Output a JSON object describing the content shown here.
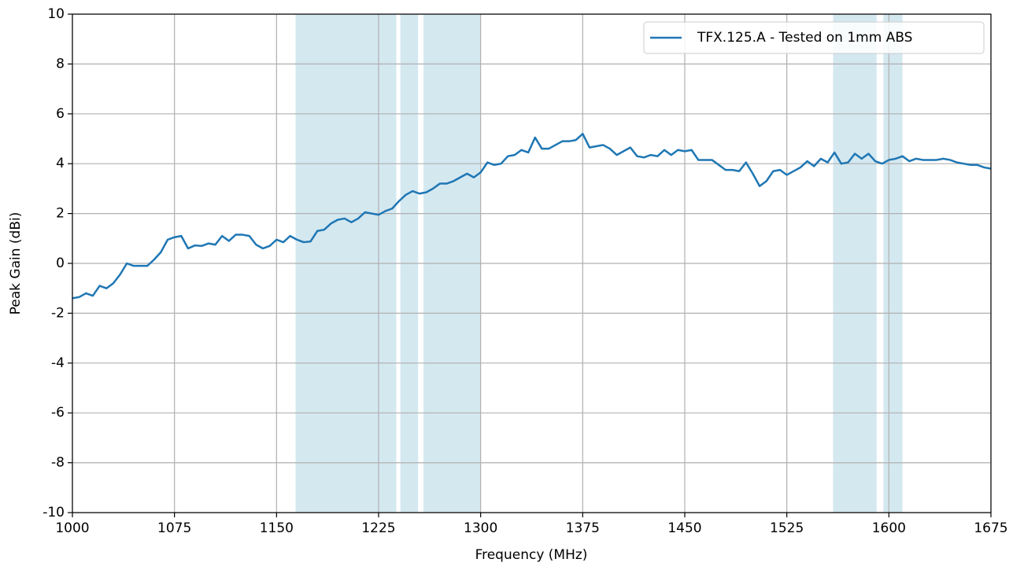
{
  "chart_data": {
    "type": "line",
    "xlabel": "Frequency (MHz)",
    "ylabel": "Peak Gain (dBi)",
    "xlim": [
      1000,
      1675
    ],
    "ylim": [
      -10,
      10
    ],
    "xticks": [
      1000,
      1075,
      1150,
      1225,
      1300,
      1375,
      1450,
      1525,
      1600,
      1675
    ],
    "yticks": [
      -10,
      -8,
      -6,
      -4,
      -2,
      0,
      2,
      4,
      6,
      8,
      10
    ],
    "grid": true,
    "legend": "upper right",
    "bands": [
      [
        1164,
        1238
      ],
      [
        1241,
        1254
      ],
      [
        1258,
        1300
      ],
      [
        1559,
        1591
      ],
      [
        1596,
        1610
      ]
    ],
    "band_color": "#d4e8f0",
    "x": [
      1000,
      1005,
      1010,
      1015,
      1020,
      1025,
      1030,
      1035,
      1040,
      1045,
      1050,
      1055,
      1060,
      1065,
      1070,
      1075,
      1080,
      1085,
      1090,
      1095,
      1100,
      1105,
      1110,
      1115,
      1120,
      1125,
      1130,
      1135,
      1140,
      1145,
      1150,
      1155,
      1160,
      1165,
      1170,
      1175,
      1180,
      1185,
      1190,
      1195,
      1200,
      1205,
      1210,
      1215,
      1220,
      1225,
      1230,
      1235,
      1240,
      1245,
      1250,
      1255,
      1260,
      1265,
      1270,
      1275,
      1280,
      1285,
      1290,
      1295,
      1300,
      1305,
      1310,
      1315,
      1320,
      1325,
      1330,
      1335,
      1340,
      1345,
      1350,
      1355,
      1360,
      1365,
      1370,
      1375,
      1380,
      1385,
      1390,
      1395,
      1400,
      1405,
      1410,
      1415,
      1420,
      1425,
      1430,
      1435,
      1440,
      1445,
      1450,
      1455,
      1460,
      1465,
      1470,
      1475,
      1480,
      1485,
      1490,
      1495,
      1500,
      1505,
      1510,
      1515,
      1520,
      1525,
      1530,
      1535,
      1540,
      1545,
      1550,
      1555,
      1560,
      1565,
      1570,
      1575,
      1580,
      1585,
      1590,
      1595,
      1600,
      1605,
      1610,
      1615,
      1620,
      1625,
      1630,
      1635,
      1640,
      1645,
      1650,
      1655,
      1660,
      1665,
      1670,
      1675
    ],
    "series": [
      {
        "name": "TFX.125.A - Tested on 1mm ABS",
        "color": "#1f77b4",
        "values": [
          -1.4,
          -1.35,
          -1.2,
          -1.3,
          -0.9,
          -1.0,
          -0.8,
          -0.45,
          0.0,
          -0.1,
          -0.1,
          -0.1,
          0.15,
          0.45,
          0.95,
          1.05,
          1.1,
          0.6,
          0.72,
          0.7,
          0.8,
          0.75,
          1.1,
          0.9,
          1.15,
          1.15,
          1.1,
          0.75,
          0.6,
          0.7,
          0.95,
          0.85,
          1.1,
          0.95,
          0.85,
          0.88,
          1.3,
          1.35,
          1.6,
          1.75,
          1.8,
          1.65,
          1.8,
          2.05,
          2.0,
          1.95,
          2.1,
          2.2,
          2.5,
          2.75,
          2.9,
          2.8,
          2.85,
          3.0,
          3.2,
          3.2,
          3.3,
          3.45,
          3.6,
          3.45,
          3.65,
          4.05,
          3.95,
          4.0,
          4.3,
          4.35,
          4.55,
          4.45,
          5.05,
          4.6,
          4.6,
          4.75,
          4.9,
          4.9,
          4.95,
          5.2,
          4.65,
          4.7,
          4.75,
          4.6,
          4.35,
          4.5,
          4.65,
          4.3,
          4.25,
          4.35,
          4.3,
          4.55,
          4.35,
          4.55,
          4.5,
          4.55,
          4.15,
          4.15,
          4.15,
          3.95,
          3.75,
          3.75,
          3.7,
          4.05,
          3.6,
          3.1,
          3.3,
          3.7,
          3.75,
          3.55,
          3.7,
          3.85,
          4.1,
          3.9,
          4.2,
          4.05,
          4.45,
          4.0,
          4.05,
          4.4,
          4.2,
          4.4,
          4.1,
          4.0,
          4.15,
          4.2,
          4.3,
          4.1,
          4.2,
          4.15,
          4.15,
          4.15,
          4.2,
          4.15,
          4.05,
          4.0,
          3.95,
          3.95,
          3.85,
          3.8
        ]
      }
    ]
  }
}
